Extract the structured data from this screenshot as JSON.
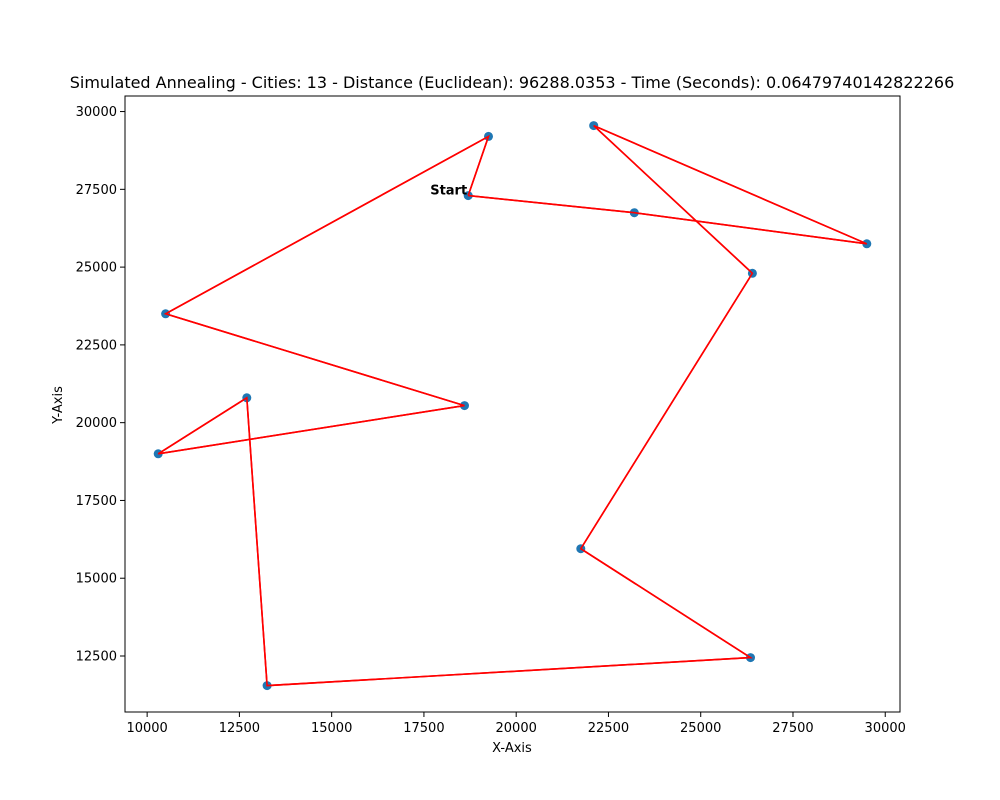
{
  "chart_data": {
    "type": "scatter",
    "title": "Simulated Annealing - Cities: 13 - Distance (Euclidean): 96288.0353 - Time (Seconds): 0.06479740142822266",
    "xlabel": "X-Axis",
    "ylabel": "Y-Axis",
    "xlim": [
      9400,
      30400
    ],
    "ylim": [
      10700,
      30500
    ],
    "xticks": [
      10000,
      12500,
      15000,
      17500,
      20000,
      22500,
      25000,
      27500,
      30000
    ],
    "yticks": [
      12500,
      15000,
      17500,
      20000,
      22500,
      25000,
      27500,
      30000
    ],
    "grid": false,
    "route": [
      [
        18700,
        27300
      ],
      [
        19250,
        29200
      ],
      [
        10500,
        23500
      ],
      [
        18600,
        20550
      ],
      [
        10300,
        19000
      ],
      [
        12700,
        20800
      ],
      [
        13250,
        11550
      ],
      [
        26350,
        12450
      ],
      [
        21750,
        15950
      ],
      [
        26400,
        24800
      ],
      [
        22100,
        29550
      ],
      [
        29500,
        25750
      ],
      [
        23200,
        26750
      ],
      [
        18700,
        27300
      ]
    ],
    "annotations": [
      {
        "text": "Start",
        "x": 18700,
        "y": 27300
      }
    ],
    "colors": {
      "point": "#1f77b4",
      "line": "#ff0000",
      "axis": "#000000"
    }
  }
}
